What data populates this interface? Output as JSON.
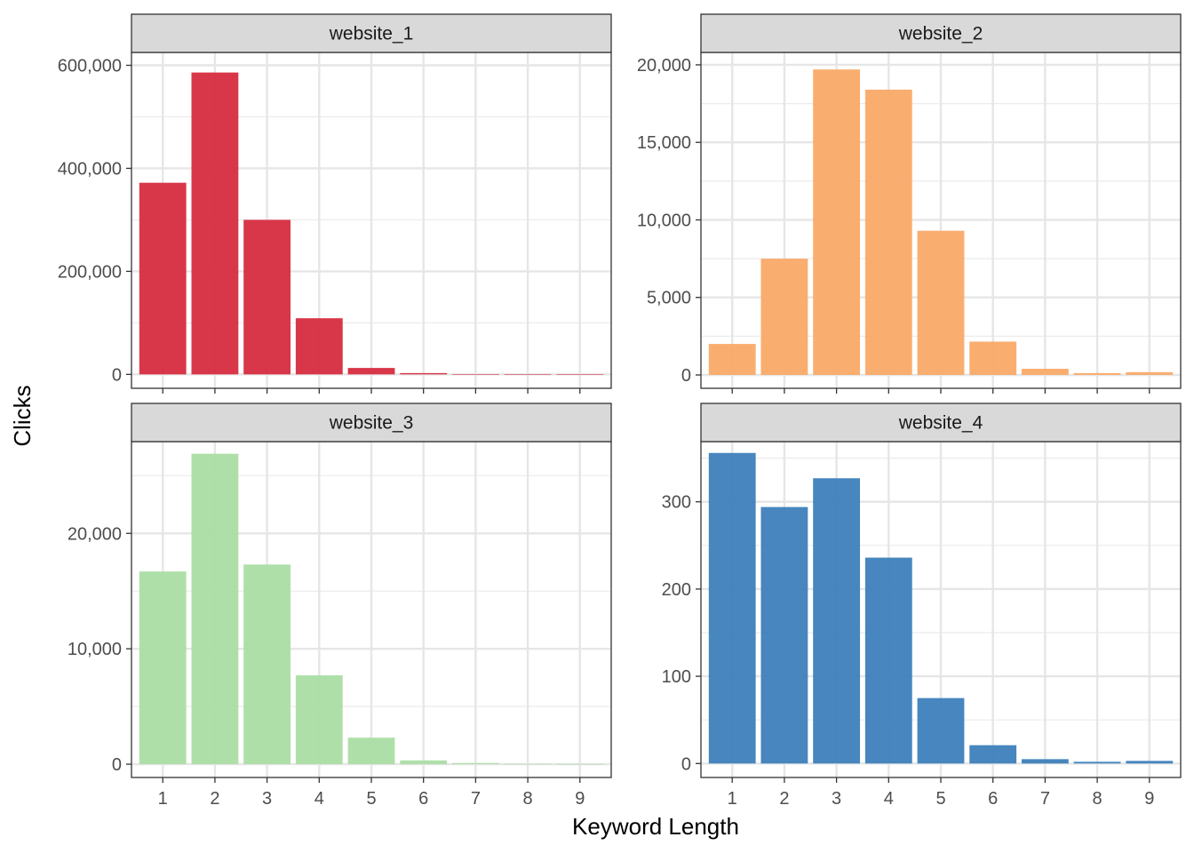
{
  "chart_data": {
    "type": "bar",
    "layout": "facet-grid-2x2",
    "xlabel": "Keyword Length",
    "ylabel": "Clicks",
    "categories": [
      1,
      2,
      3,
      4,
      5,
      6,
      7,
      8,
      9
    ],
    "scales": "free_y",
    "grid": true,
    "legend": "none",
    "panels": [
      {
        "name": "website_1",
        "color": "#d62c3f",
        "values": [
          372000,
          586000,
          300000,
          109000,
          12500,
          2500,
          300,
          50,
          20
        ],
        "ylim": [
          -27000,
          625000
        ],
        "yticks": [
          0,
          200000,
          400000,
          600000
        ],
        "ytick_labels": [
          "0",
          "200,000",
          "400,000",
          "600,000"
        ]
      },
      {
        "name": "website_2",
        "color": "#f9aa68",
        "values": [
          2000,
          7500,
          19700,
          18400,
          9300,
          2150,
          400,
          120,
          180
        ],
        "ylim": [
          -860,
          20800
        ],
        "yticks": [
          0,
          5000,
          10000,
          15000,
          20000
        ],
        "ytick_labels": [
          "0",
          "5,000",
          "10,000",
          "15,000",
          "20,000"
        ]
      },
      {
        "name": "website_3",
        "color": "#abdda4",
        "values": [
          16700,
          26900,
          17300,
          7700,
          2300,
          330,
          100,
          25,
          15
        ],
        "ylim": [
          -1150,
          27950
        ],
        "yticks": [
          0,
          10000,
          20000
        ],
        "ytick_labels": [
          "0",
          "10,000",
          "20,000"
        ]
      },
      {
        "name": "website_4",
        "color": "#3d7fbb",
        "values": [
          356,
          294,
          327,
          236,
          75,
          21,
          5,
          2,
          3
        ],
        "ylim": [
          -16,
          369
        ],
        "yticks": [
          0,
          100,
          200,
          300
        ],
        "ytick_labels": [
          "0",
          "100",
          "200",
          "300"
        ]
      }
    ]
  }
}
